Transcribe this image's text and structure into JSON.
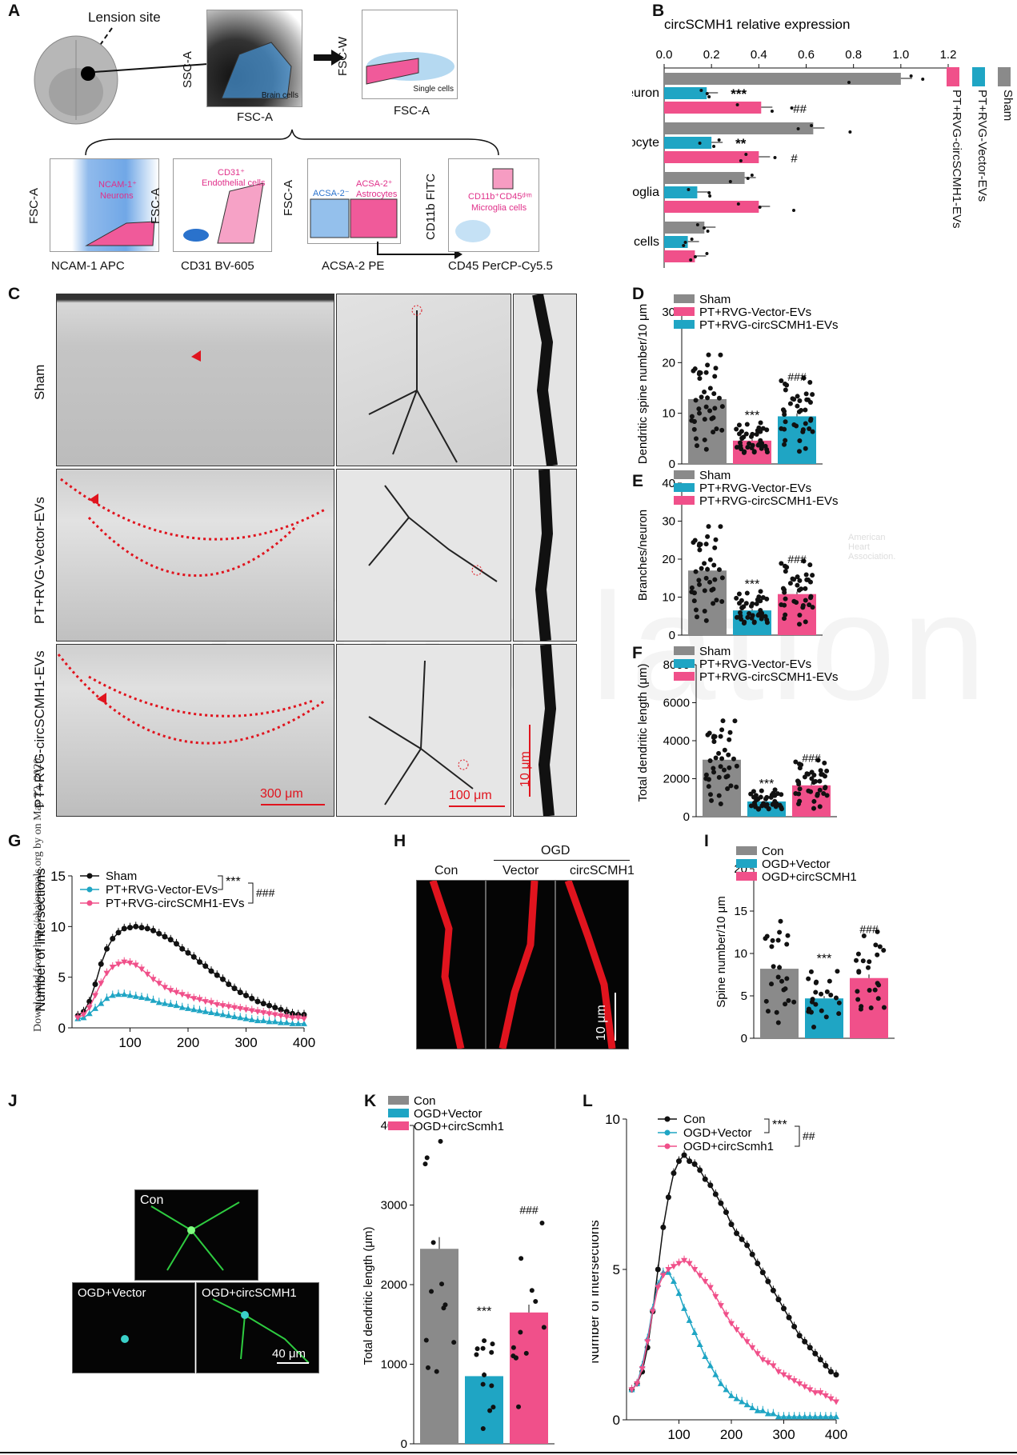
{
  "panels": {
    "A": "A",
    "B": "B",
    "C": "C",
    "D": "D",
    "E": "E",
    "F": "F",
    "G": "G",
    "H": "H",
    "I": "I",
    "J": "J",
    "K": "K",
    "L": "L"
  },
  "panelA": {
    "lesion": "Lension site",
    "gate1": {
      "y": "SSC-A",
      "x": "FSC-A",
      "label": "Brain cells"
    },
    "gate2": {
      "y": "FSC-W",
      "x": "FSC-A",
      "label": "Single cells"
    },
    "sub": [
      {
        "y": "FSC-A",
        "x": "NCAM-1 APC",
        "label1": "NCAM-1⁺",
        "label2": "Neurons"
      },
      {
        "y": "FSC-A",
        "x": "CD31 BV-605",
        "label1": "CD31⁺",
        "label2": "Endothelial cells"
      },
      {
        "y": "FSC-A",
        "x": "ACSA-2 PE",
        "label1": "ACSA-2⁺",
        "label2": "Astrocytes",
        "neg": "ACSA-2⁻"
      },
      {
        "y": "CD11b FITC",
        "x": "CD45 PerCP-Cy5.5",
        "label1": "CD11b⁺CD45ᵈⁱᵐ",
        "label2": "Microglia cells"
      }
    ]
  },
  "colors": {
    "sham": "#8a8a8a",
    "vector": "#1fa5c4",
    "circ": "#f0508a",
    "black": "#111111",
    "red": "#e0141e"
  },
  "panelB": {
    "title": "circSCMH1 relative expression",
    "ticks": [
      "0.0",
      "0.2",
      "0.4",
      "0.6",
      "0.8",
      "1.0",
      "1.2"
    ],
    "legend": [
      "Sham",
      "PT+RVG-Vector-EVs",
      "PT+RVG-circSCMH1-EVs"
    ],
    "chart_data": {
      "type": "bar",
      "title": "circSCMH1 relative expression",
      "xlim": [
        0,
        1.2
      ],
      "categories": [
        "Neuron",
        "Astrocyte",
        "Microglia",
        "Endothelial cells"
      ],
      "series": [
        {
          "name": "Sham",
          "values": [
            1.0,
            0.63,
            0.34,
            0.17
          ]
        },
        {
          "name": "PT+RVG-Vector-EVs",
          "values": [
            0.18,
            0.2,
            0.14,
            0.1
          ]
        },
        {
          "name": "PT+RVG-circSCMH1-EVs",
          "values": [
            0.41,
            0.4,
            0.4,
            0.13
          ]
        }
      ],
      "annotations": [
        {
          "category": "Neuron",
          "vector": "***",
          "circ": "##"
        },
        {
          "category": "Astrocyte",
          "vector": "**",
          "circ": "#"
        }
      ]
    }
  },
  "panelC": {
    "rows": [
      "Sham",
      "PT+RVG-Vector-EVs",
      "PT+RVG-circSCMH1-EVs"
    ],
    "scale1": "300 μm",
    "scale2": "100 μm",
    "scale3": "10 μm"
  },
  "panelD": {
    "ylabel": "Dendritic spine number/10 μm",
    "legend": [
      "Sham",
      "PT+RVG-Vector-EVs",
      "PT+RVG-circSCMH1-EVs"
    ],
    "chart_data": {
      "type": "bar",
      "ylim": [
        0,
        30
      ],
      "yticks": [
        0,
        10,
        20,
        30
      ],
      "series": [
        {
          "name": "Sham",
          "values": [
            12.8
          ]
        },
        {
          "name": "PT+RVG-Vector-EVs",
          "values": [
            4.6
          ]
        },
        {
          "name": "PT+RVG-circSCMH1-EVs",
          "values": [
            9.4
          ]
        }
      ],
      "annotations": [
        "***",
        "###"
      ]
    }
  },
  "panelE": {
    "ylabel": "Branches/neuron",
    "legend": [
      "Sham",
      "PT+RVG-Vector-EVs",
      "PT+RVG-circSCMH1-EVs"
    ],
    "chart_data": {
      "type": "bar",
      "ylim": [
        0,
        40
      ],
      "yticks": [
        0,
        10,
        20,
        30,
        40
      ],
      "series": [
        {
          "name": "Sham",
          "values": [
            17
          ]
        },
        {
          "name": "PT+RVG-Vector-EVs",
          "values": [
            6.5
          ]
        },
        {
          "name": "PT+RVG-circSCMH1-EVs",
          "values": [
            10.8
          ]
        }
      ],
      "annotations": [
        "***",
        "###"
      ]
    }
  },
  "panelF": {
    "ylabel": "Total dendritic length (μm)",
    "legend": [
      "Sham",
      "PT+RVG-Vector-EVs",
      "PT+RVG-circSCMH1-EVs"
    ],
    "chart_data": {
      "type": "bar",
      "ylim": [
        0,
        8000
      ],
      "yticks": [
        0,
        2000,
        4000,
        6000,
        8000
      ],
      "series": [
        {
          "name": "Sham",
          "values": [
            3000
          ]
        },
        {
          "name": "PT+RVG-Vector-EVs",
          "values": [
            800
          ]
        },
        {
          "name": "PT+RVG-circSCMH1-EVs",
          "values": [
            1650
          ]
        }
      ],
      "annotations": [
        "***",
        "###"
      ]
    }
  },
  "panelG": {
    "ylabel": "Number of intersections",
    "legend": [
      "Sham",
      "PT+RVG-Vector-EVs",
      "PT+RVG-circSCMH1-EVs"
    ],
    "sig1": "***",
    "sig2": "###",
    "chart_data": {
      "type": "line",
      "xlim": [
        0,
        400
      ],
      "ylim": [
        0,
        15
      ],
      "xticks": [
        100,
        200,
        300,
        400
      ],
      "yticks": [
        0,
        5,
        10,
        15
      ],
      "x": [
        10,
        20,
        30,
        40,
        50,
        60,
        70,
        80,
        90,
        100,
        110,
        120,
        130,
        140,
        150,
        160,
        170,
        180,
        190,
        200,
        210,
        220,
        230,
        240,
        250,
        260,
        270,
        280,
        290,
        300,
        310,
        320,
        330,
        340,
        350,
        360,
        370,
        380,
        390,
        400
      ],
      "series": [
        {
          "name": "Sham",
          "values": [
            1.2,
            1.6,
            2.6,
            4.3,
            6.3,
            7.8,
            8.8,
            9.4,
            9.8,
            9.9,
            10.0,
            9.9,
            9.8,
            9.6,
            9.3,
            9.0,
            8.7,
            8.3,
            7.8,
            7.4,
            7.0,
            6.5,
            6.1,
            5.6,
            5.2,
            4.8,
            4.3,
            3.9,
            3.5,
            3.2,
            2.9,
            2.6,
            2.4,
            2.2,
            2.0,
            1.8,
            1.6,
            1.4,
            1.3,
            1.3
          ]
        },
        {
          "name": "PT+RVG-Vector-EVs",
          "values": [
            0.9,
            1.0,
            1.4,
            1.9,
            2.4,
            2.9,
            3.2,
            3.3,
            3.3,
            3.2,
            3.1,
            3.0,
            2.9,
            2.7,
            2.5,
            2.4,
            2.3,
            2.2,
            2.0,
            1.9,
            1.8,
            1.7,
            1.6,
            1.5,
            1.4,
            1.3,
            1.2,
            1.1,
            1.0,
            0.9,
            0.8,
            0.7,
            0.7,
            0.6,
            0.6,
            0.5,
            0.5,
            0.4,
            0.4,
            0.4
          ]
        },
        {
          "name": "PT+RVG-circSCMH1-EVs",
          "values": [
            1.0,
            1.3,
            2.0,
            3.2,
            4.4,
            5.4,
            6.0,
            6.3,
            6.5,
            6.4,
            6.2,
            5.8,
            5.3,
            4.8,
            4.4,
            4.0,
            3.7,
            3.5,
            3.3,
            3.1,
            2.9,
            2.8,
            2.6,
            2.5,
            2.3,
            2.2,
            2.1,
            2.0,
            1.9,
            1.8,
            1.7,
            1.6,
            1.5,
            1.4,
            1.3,
            1.2,
            1.1,
            1.0,
            1.0,
            0.9
          ]
        }
      ]
    }
  },
  "panelH": {
    "ogd": "OGD",
    "labels": [
      "Con",
      "Vector",
      "circSCMH1"
    ],
    "scale": "10 μm"
  },
  "panelI": {
    "ylabel": "Spine number/10 μm",
    "legend": [
      "Con",
      "OGD+Vector",
      "OGD+circSCMH1"
    ],
    "chart_data": {
      "type": "bar",
      "ylim": [
        0,
        20
      ],
      "yticks": [
        0,
        5,
        10,
        15,
        20
      ],
      "series": [
        {
          "name": "Con",
          "values": [
            8.2
          ]
        },
        {
          "name": "OGD+Vector",
          "values": [
            4.7
          ]
        },
        {
          "name": "OGD+circSCMH1",
          "values": [
            7.1
          ]
        }
      ],
      "annotations": [
        "***",
        "###"
      ]
    }
  },
  "panelJ": {
    "labels": [
      "Con",
      "OGD+Vector",
      "OGD+circSCMH1"
    ],
    "scale": "40 μm"
  },
  "panelK": {
    "ylabel": "Total dendritic length (μm)",
    "legend": [
      "Con",
      "OGD+Vector",
      "OGD+circScmh1"
    ],
    "chart_data": {
      "type": "bar",
      "ylim": [
        0,
        4000
      ],
      "yticks": [
        0,
        1000,
        2000,
        3000,
        4000
      ],
      "series": [
        {
          "name": "Con",
          "values": [
            2450
          ]
        },
        {
          "name": "OGD+Vector",
          "values": [
            850
          ]
        },
        {
          "name": "OGD+circScmh1",
          "values": [
            1650
          ]
        }
      ],
      "annotations": [
        "***",
        "###"
      ]
    }
  },
  "panelL": {
    "ylabel": "Number of intersections",
    "legend": [
      "Con",
      "OGD+Vector",
      "OGD+circScmh1"
    ],
    "sig1": "***",
    "sig2": "##",
    "chart_data": {
      "type": "line",
      "xlim": [
        0,
        400
      ],
      "ylim": [
        0,
        10
      ],
      "xticks": [
        100,
        200,
        300,
        400
      ],
      "yticks": [
        0,
        5,
        10
      ],
      "x": [
        10,
        20,
        30,
        40,
        50,
        60,
        70,
        80,
        90,
        100,
        110,
        120,
        130,
        140,
        150,
        160,
        170,
        180,
        190,
        200,
        210,
        220,
        230,
        240,
        250,
        260,
        270,
        280,
        290,
        300,
        310,
        320,
        330,
        340,
        350,
        360,
        370,
        380,
        390,
        400
      ],
      "series": [
        {
          "name": "Con",
          "values": [
            1.0,
            1.2,
            1.6,
            2.4,
            3.6,
            5.0,
            6.4,
            7.4,
            8.2,
            8.6,
            8.8,
            8.6,
            8.5,
            8.3,
            8.0,
            7.8,
            7.5,
            7.2,
            6.9,
            6.5,
            6.2,
            6.0,
            5.8,
            5.5,
            5.2,
            4.9,
            4.6,
            4.3,
            4.0,
            3.7,
            3.4,
            3.1,
            2.8,
            2.6,
            2.4,
            2.2,
            2.0,
            1.8,
            1.6,
            1.5
          ]
        },
        {
          "name": "OGD+Vector",
          "values": [
            1.0,
            1.2,
            1.8,
            2.7,
            3.7,
            4.5,
            4.9,
            4.9,
            4.6,
            4.2,
            3.7,
            3.3,
            2.9,
            2.5,
            2.1,
            1.8,
            1.5,
            1.2,
            1.0,
            0.8,
            0.7,
            0.6,
            0.5,
            0.4,
            0.3,
            0.3,
            0.2,
            0.2,
            0.1,
            0.1,
            0.1,
            0.1,
            0.1,
            0.1,
            0.1,
            0.1,
            0.1,
            0.1,
            0.1,
            0.1
          ]
        },
        {
          "name": "OGD+circScmh1",
          "values": [
            1.0,
            1.2,
            1.7,
            2.6,
            3.6,
            4.4,
            4.8,
            5.0,
            5.1,
            5.2,
            5.3,
            5.2,
            5.0,
            4.8,
            4.6,
            4.4,
            4.1,
            3.8,
            3.5,
            3.2,
            3.0,
            2.8,
            2.6,
            2.4,
            2.2,
            2.0,
            1.9,
            1.8,
            1.6,
            1.5,
            1.4,
            1.3,
            1.2,
            1.1,
            1.0,
            0.9,
            0.9,
            0.8,
            0.7,
            0.6
          ]
        }
      ]
    }
  },
  "sidebar": "Downloaded from http://ahajournals.org by on May 22, 2020",
  "watermark": "Circulation",
  "aha": {
    "line1": "American",
    "line2": "Heart",
    "line3": "Association."
  }
}
